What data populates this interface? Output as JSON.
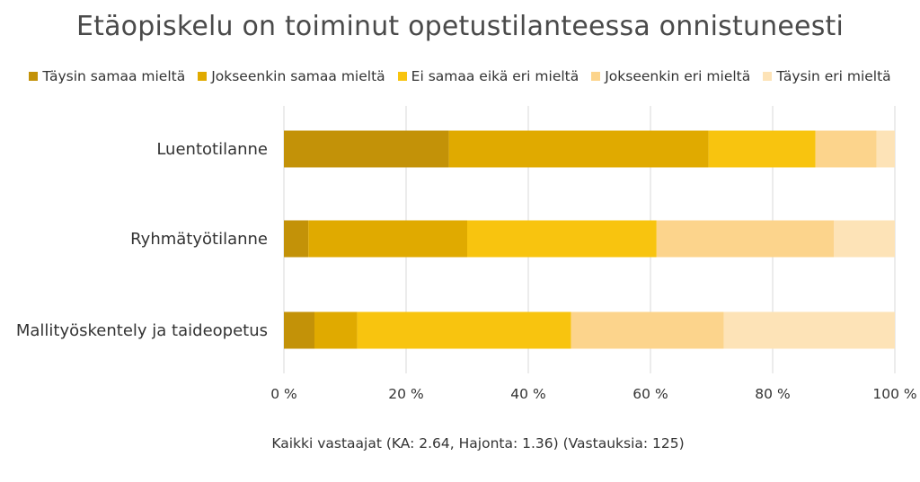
{
  "chart_data": {
    "type": "bar",
    "orientation": "horizontal",
    "stacked": true,
    "title": "Etäopiskelu on toiminut opetustilanteessa onnistuneesti",
    "categories": [
      "Luentotilanne",
      "Ryhmätyötilanne",
      "Mallityöskentely ja taideopetus"
    ],
    "series": [
      {
        "name": "Täysin samaa mieltä",
        "color": "#c39208",
        "values": [
          27,
          4,
          5
        ]
      },
      {
        "name": "Jokseenkin samaa mieltä",
        "color": "#e0aa00",
        "values": [
          42.5,
          26,
          7
        ]
      },
      {
        "name": "Ei samaa eikä eri mieltä",
        "color": "#f8c40f",
        "values": [
          17.5,
          31,
          35
        ]
      },
      {
        "name": "Jokseenkin eri mieltä",
        "color": "#fcd48c",
        "values": [
          10,
          29,
          25
        ]
      },
      {
        "name": "Täysin eri mieltä",
        "color": "#fde3b7",
        "values": [
          3,
          10,
          28
        ]
      }
    ],
    "xlim": [
      0,
      100
    ],
    "xticks": [
      "0 %",
      "20 %",
      "40 %",
      "60 %",
      "80 %",
      "100 %"
    ],
    "xtick_values": [
      0,
      20,
      40,
      60,
      80,
      100
    ],
    "grid": true,
    "legend_position": "top",
    "footnote": "Kaikki vastaajat (KA: 2.64, Hajonta: 1.36) (Vastauksia: 125)"
  }
}
